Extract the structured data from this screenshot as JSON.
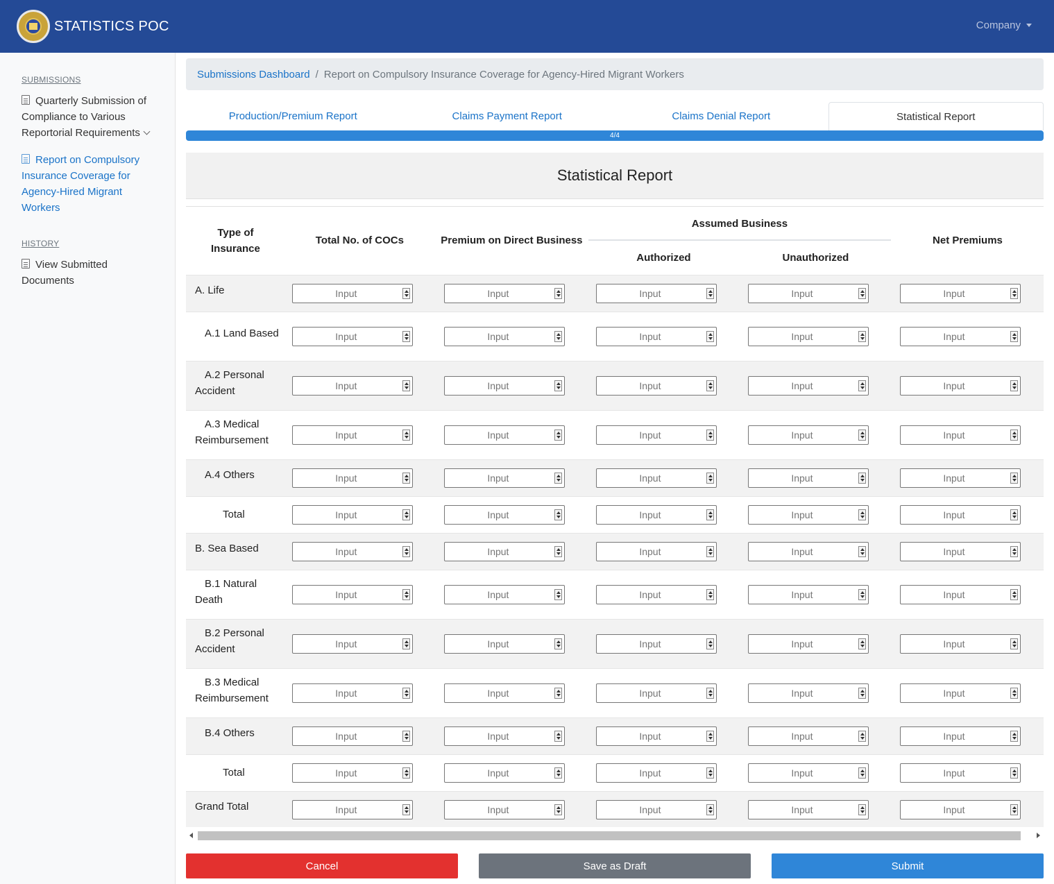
{
  "app": {
    "brand": "STATISTICS POC",
    "company_menu": "Company"
  },
  "sidebar": {
    "submissions_heading": "SUBMISSIONS",
    "history_heading": "HISTORY",
    "items": [
      {
        "label": "Quarterly Submission of Compliance to Various Reportorial Requirements"
      },
      {
        "label": "Report on Compulsory Insurance Coverage for Agency-Hired Migrant Workers"
      },
      {
        "label": "View Submitted Documents"
      }
    ]
  },
  "breadcrumb": {
    "home": "Submissions Dashboard",
    "separator": "/",
    "current": "Report on Compulsory Insurance Coverage for Agency-Hired Migrant Workers"
  },
  "tabs": [
    {
      "label": "Production/Premium Report"
    },
    {
      "label": "Claims Payment Report"
    },
    {
      "label": "Claims Denial Report"
    },
    {
      "label": "Statistical Report",
      "active": true
    }
  ],
  "progress": {
    "label": "4/4",
    "fraction": 1.0
  },
  "report": {
    "title": "Statistical Report",
    "columns": {
      "type": "Type of Insurance",
      "cocs": "Total No. of COCs",
      "premium_direct": "Premium on Direct Business",
      "assumed": "Assumed Business",
      "authorized": "Authorized",
      "unauthorized": "Unauthorized",
      "net": "Net Premiums"
    },
    "input_placeholder": "Input",
    "rows": [
      {
        "label": "A. Life"
      },
      {
        "label": "A.1 Land Based"
      },
      {
        "label": "A.2 Personal Accident"
      },
      {
        "label": "A.3 Medical Reimbursement"
      },
      {
        "label": "A.4 Others"
      },
      {
        "label": "Total"
      },
      {
        "label": "B. Sea Based"
      },
      {
        "label": "B.1 Natural Death"
      },
      {
        "label": "B.2 Personal Accident"
      },
      {
        "label": "B.3 Medical Reimbursement"
      },
      {
        "label": "B.4 Others"
      },
      {
        "label": "Total"
      },
      {
        "label": "Grand Total"
      }
    ]
  },
  "actions": {
    "cancel": "Cancel",
    "draft": "Save as Draft",
    "submit": "Submit"
  },
  "colors": {
    "navbar": "#244a96",
    "link": "#1a73c8",
    "cancel": "#e3312f",
    "draft": "#6c737c",
    "submit": "#2f86d8"
  }
}
